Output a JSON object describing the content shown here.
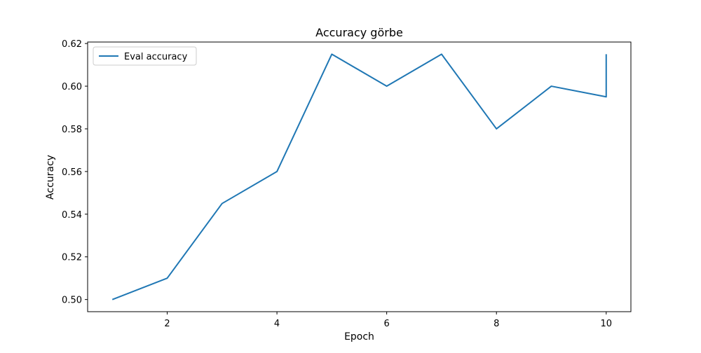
{
  "chart_data": {
    "type": "line",
    "title": "Accuracy görbe",
    "xlabel": "Epoch",
    "ylabel": "Accuracy",
    "xlim": [
      0.55,
      10.45
    ],
    "ylim": [
      0.4943,
      0.6207
    ],
    "xticks": [
      2,
      4,
      6,
      8,
      10
    ],
    "xtick_labels": [
      "2",
      "4",
      "6",
      "8",
      "10"
    ],
    "yticks": [
      0.5,
      0.52,
      0.54,
      0.56,
      0.58,
      0.6,
      0.62
    ],
    "ytick_labels": [
      "0.50",
      "0.52",
      "0.54",
      "0.56",
      "0.58",
      "0.60",
      "0.62"
    ],
    "grid": false,
    "legend_position": "upper-left",
    "series": [
      {
        "name": "Eval accuracy",
        "color": "#1f77b4",
        "x": [
          1,
          2,
          3,
          4,
          5,
          6,
          7,
          8,
          9,
          10,
          10
        ],
        "y": [
          0.5,
          0.51,
          0.545,
          0.56,
          0.615,
          0.6,
          0.615,
          0.58,
          0.6,
          0.595,
          0.615
        ]
      }
    ]
  }
}
